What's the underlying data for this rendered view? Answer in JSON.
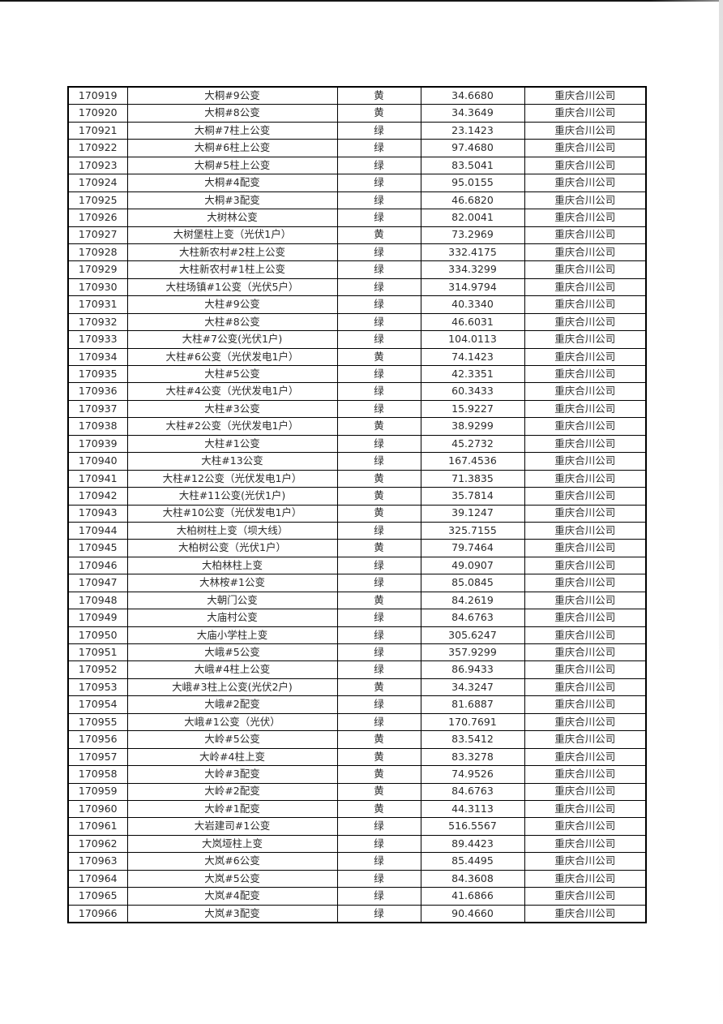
{
  "page": {
    "background_color": "#ffffff",
    "top_edge_line_color": "#161616",
    "right_edge_shade_color": "#e0e0e0",
    "border_color": "#000000",
    "text_color": "#2b2b2b"
  },
  "table": {
    "has_visible_header": false,
    "company_repeated": "重庆合川公司",
    "status_values_present": [
      "黄",
      "绿"
    ],
    "rows": [
      {
        "id": "170919",
        "name": "大桐#9公变",
        "status": "黄",
        "value": "34.6680",
        "company": "重庆合川公司"
      },
      {
        "id": "170920",
        "name": "大桐#8公变",
        "status": "黄",
        "value": "34.3649",
        "company": "重庆合川公司"
      },
      {
        "id": "170921",
        "name": "大桐#7柱上公变",
        "status": "绿",
        "value": "23.1423",
        "company": "重庆合川公司"
      },
      {
        "id": "170922",
        "name": "大桐#6柱上公变",
        "status": "绿",
        "value": "97.4680",
        "company": "重庆合川公司"
      },
      {
        "id": "170923",
        "name": "大桐#5柱上公变",
        "status": "绿",
        "value": "83.5041",
        "company": "重庆合川公司"
      },
      {
        "id": "170924",
        "name": "大桐#4配变",
        "status": "绿",
        "value": "95.0155",
        "company": "重庆合川公司"
      },
      {
        "id": "170925",
        "name": "大桐#3配变",
        "status": "绿",
        "value": "46.6820",
        "company": "重庆合川公司"
      },
      {
        "id": "170926",
        "name": "大树林公变",
        "status": "绿",
        "value": "82.0041",
        "company": "重庆合川公司"
      },
      {
        "id": "170927",
        "name": "大树堡柱上变（光伏1户）",
        "status": "黄",
        "value": "73.2969",
        "company": "重庆合川公司"
      },
      {
        "id": "170928",
        "name": "大柱新农村#2柱上公变",
        "status": "绿",
        "value": "332.4175",
        "company": "重庆合川公司"
      },
      {
        "id": "170929",
        "name": "大柱新农村#1柱上公变",
        "status": "绿",
        "value": "334.3299",
        "company": "重庆合川公司"
      },
      {
        "id": "170930",
        "name": "大柱场镇#1公变（光伏5户）",
        "status": "绿",
        "value": "314.9794",
        "company": "重庆合川公司"
      },
      {
        "id": "170931",
        "name": "大柱#9公变",
        "status": "绿",
        "value": "40.3340",
        "company": "重庆合川公司"
      },
      {
        "id": "170932",
        "name": "大柱#8公变",
        "status": "绿",
        "value": "46.6031",
        "company": "重庆合川公司"
      },
      {
        "id": "170933",
        "name": "大柱#7公变(光伏1户)",
        "status": "绿",
        "value": "104.0113",
        "company": "重庆合川公司"
      },
      {
        "id": "170934",
        "name": "大柱#6公变（光伏发电1户）",
        "status": "黄",
        "value": "74.1423",
        "company": "重庆合川公司"
      },
      {
        "id": "170935",
        "name": "大柱#5公变",
        "status": "绿",
        "value": "42.3351",
        "company": "重庆合川公司"
      },
      {
        "id": "170936",
        "name": "大柱#4公变（光伏发电1户）",
        "status": "绿",
        "value": "60.3433",
        "company": "重庆合川公司"
      },
      {
        "id": "170937",
        "name": "大柱#3公变",
        "status": "绿",
        "value": "15.9227",
        "company": "重庆合川公司"
      },
      {
        "id": "170938",
        "name": "大柱#2公变（光伏发电1户）",
        "status": "黄",
        "value": "38.9299",
        "company": "重庆合川公司"
      },
      {
        "id": "170939",
        "name": "大柱#1公变",
        "status": "绿",
        "value": "45.2732",
        "company": "重庆合川公司"
      },
      {
        "id": "170940",
        "name": "大柱#13公变",
        "status": "绿",
        "value": "167.4536",
        "company": "重庆合川公司"
      },
      {
        "id": "170941",
        "name": "大柱#12公变（光伏发电1户）",
        "status": "黄",
        "value": "71.3835",
        "company": "重庆合川公司"
      },
      {
        "id": "170942",
        "name": "大柱#11公变(光伏1户)",
        "status": "黄",
        "value": "35.7814",
        "company": "重庆合川公司"
      },
      {
        "id": "170943",
        "name": "大柱#10公变（光伏发电1户）",
        "status": "黄",
        "value": "39.1247",
        "company": "重庆合川公司"
      },
      {
        "id": "170944",
        "name": "大柏树柱上变（坝大线）",
        "status": "绿",
        "value": "325.7155",
        "company": "重庆合川公司"
      },
      {
        "id": "170945",
        "name": "大柏树公变（光伏1户）",
        "status": "黄",
        "value": "79.7464",
        "company": "重庆合川公司"
      },
      {
        "id": "170946",
        "name": "大柏林柱上变",
        "status": "绿",
        "value": "49.0907",
        "company": "重庆合川公司"
      },
      {
        "id": "170947",
        "name": "大林桉#1公变",
        "status": "绿",
        "value": "85.0845",
        "company": "重庆合川公司"
      },
      {
        "id": "170948",
        "name": "大朝门公变",
        "status": "黄",
        "value": "84.2619",
        "company": "重庆合川公司"
      },
      {
        "id": "170949",
        "name": "大庙村公变",
        "status": "绿",
        "value": "84.6763",
        "company": "重庆合川公司"
      },
      {
        "id": "170950",
        "name": "大庙小学柱上变",
        "status": "绿",
        "value": "305.6247",
        "company": "重庆合川公司"
      },
      {
        "id": "170951",
        "name": "大峨#5公变",
        "status": "绿",
        "value": "357.9299",
        "company": "重庆合川公司"
      },
      {
        "id": "170952",
        "name": "大峨#4柱上公变",
        "status": "绿",
        "value": "86.9433",
        "company": "重庆合川公司"
      },
      {
        "id": "170953",
        "name": "大峨#3柱上公变(光伏2户)",
        "status": "黄",
        "value": "34.3247",
        "company": "重庆合川公司"
      },
      {
        "id": "170954",
        "name": "大峨#2配变",
        "status": "绿",
        "value": "81.6887",
        "company": "重庆合川公司"
      },
      {
        "id": "170955",
        "name": "大峨#1公变（光伏）",
        "status": "绿",
        "value": "170.7691",
        "company": "重庆合川公司"
      },
      {
        "id": "170956",
        "name": "大岭#5公变",
        "status": "黄",
        "value": "83.5412",
        "company": "重庆合川公司"
      },
      {
        "id": "170957",
        "name": "大岭#4柱上变",
        "status": "黄",
        "value": "83.3278",
        "company": "重庆合川公司"
      },
      {
        "id": "170958",
        "name": "大岭#3配变",
        "status": "黄",
        "value": "74.9526",
        "company": "重庆合川公司"
      },
      {
        "id": "170959",
        "name": "大岭#2配变",
        "status": "黄",
        "value": "84.6763",
        "company": "重庆合川公司"
      },
      {
        "id": "170960",
        "name": "大岭#1配变",
        "status": "黄",
        "value": "44.3113",
        "company": "重庆合川公司"
      },
      {
        "id": "170961",
        "name": "大岩建司#1公变",
        "status": "绿",
        "value": "516.5567",
        "company": "重庆合川公司"
      },
      {
        "id": "170962",
        "name": "大岚垭柱上变",
        "status": "绿",
        "value": "89.4423",
        "company": "重庆合川公司"
      },
      {
        "id": "170963",
        "name": "大岚#6公变",
        "status": "绿",
        "value": "85.4495",
        "company": "重庆合川公司"
      },
      {
        "id": "170964",
        "name": "大岚#5公变",
        "status": "绿",
        "value": "84.3608",
        "company": "重庆合川公司"
      },
      {
        "id": "170965",
        "name": "大岚#4配变",
        "status": "绿",
        "value": "41.6866",
        "company": "重庆合川公司"
      },
      {
        "id": "170966",
        "name": "大岚#3配变",
        "status": "绿",
        "value": "90.4660",
        "company": "重庆合川公司"
      }
    ]
  }
}
